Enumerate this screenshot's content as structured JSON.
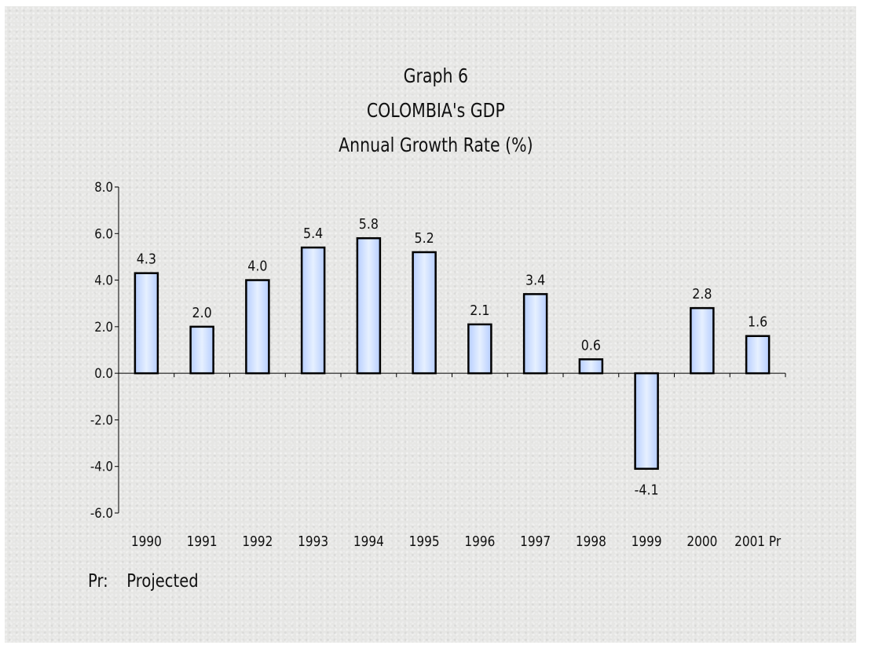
{
  "chart_data": {
    "type": "bar",
    "title": "Graph 6",
    "subtitle": "COLOMBIA's GDP",
    "subtitle2": "Annual Growth Rate (%)",
    "categories": [
      "1990",
      "1991",
      "1992",
      "1993",
      "1994",
      "1995",
      "1996",
      "1997",
      "1998",
      "1999",
      "2000",
      "2001 Pr"
    ],
    "values": [
      4.3,
      2.0,
      4.0,
      5.4,
      5.8,
      5.2,
      2.1,
      3.4,
      0.6,
      -4.1,
      2.8,
      1.6
    ],
    "value_labels": [
      "4.3",
      "2.0",
      "4.0",
      "5.4",
      "5.8",
      "5.2",
      "2.1",
      "3.4",
      "0.6",
      "-4.1",
      "2.8",
      "1.6"
    ],
    "ylim": [
      -6.0,
      8.0
    ],
    "yticks": [
      -6.0,
      -4.0,
      -2.0,
      0.0,
      2.0,
      4.0,
      6.0,
      8.0
    ],
    "ytick_labels": [
      "-6.0",
      "-4.0",
      "-2.0",
      "0.0",
      "2.0",
      "4.0",
      "6.0",
      "8.0"
    ],
    "xlabel": "",
    "ylabel": "",
    "grid": false,
    "bar_color": "#c8dcfa",
    "bar_edge_color": "#000000"
  },
  "footnote": {
    "abbr": "Pr:",
    "text": "Projected"
  }
}
